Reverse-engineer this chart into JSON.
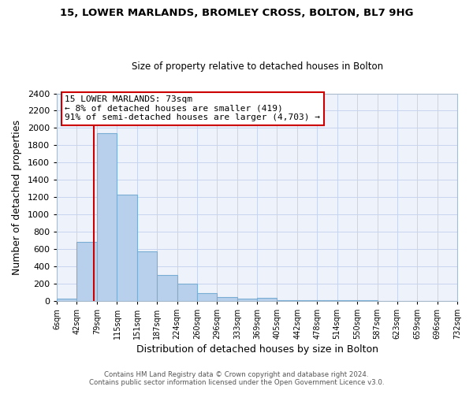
{
  "title": "15, LOWER MARLANDS, BROMLEY CROSS, BOLTON, BL7 9HG",
  "subtitle": "Size of property relative to detached houses in Bolton",
  "xlabel": "Distribution of detached houses by size in Bolton",
  "ylabel": "Number of detached properties",
  "footer_line1": "Contains HM Land Registry data © Crown copyright and database right 2024.",
  "footer_line2": "Contains public sector information licensed under the Open Government Licence v3.0.",
  "bin_edges": [
    6,
    42,
    79,
    115,
    151,
    187,
    224,
    260,
    296,
    333,
    369,
    405,
    442,
    478,
    514,
    550,
    587,
    623,
    659,
    696,
    732
  ],
  "bin_counts": [
    20,
    680,
    1940,
    1230,
    575,
    300,
    200,
    85,
    45,
    20,
    35,
    10,
    5,
    5,
    2,
    2,
    1,
    1,
    1,
    1
  ],
  "bar_color": "#b8d0eb",
  "bar_edge_color": "#7aadd4",
  "property_size": 73,
  "property_line_color": "#cc0000",
  "annotation_text": "15 LOWER MARLANDS: 73sqm\n← 8% of detached houses are smaller (419)\n91% of semi-detached houses are larger (4,703) →",
  "annotation_box_color": "#ffffff",
  "annotation_box_edge_color": "#cc0000",
  "ylim": [
    0,
    2400
  ],
  "yticks": [
    0,
    200,
    400,
    600,
    800,
    1000,
    1200,
    1400,
    1600,
    1800,
    2000,
    2200,
    2400
  ],
  "tick_labels": [
    "6sqm",
    "42sqm",
    "79sqm",
    "115sqm",
    "151sqm",
    "187sqm",
    "224sqm",
    "260sqm",
    "296sqm",
    "333sqm",
    "369sqm",
    "405sqm",
    "442sqm",
    "478sqm",
    "514sqm",
    "550sqm",
    "587sqm",
    "623sqm",
    "659sqm",
    "696sqm",
    "732sqm"
  ],
  "background_color": "#ffffff",
  "plot_bg_color": "#eef2fb",
  "grid_color": "#c8d4ee"
}
